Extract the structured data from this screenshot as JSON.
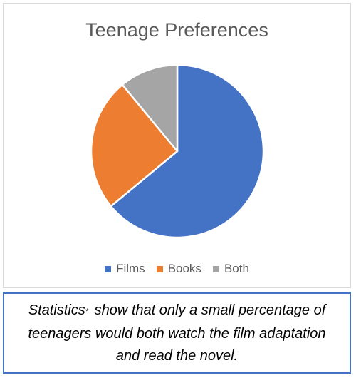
{
  "chart_data": {
    "type": "pie",
    "title": "Teenage Preferences",
    "categories": [
      "Films",
      "Books",
      "Both"
    ],
    "values": [
      64,
      25,
      11
    ],
    "colors": [
      "#4472c4",
      "#ed7d31",
      "#a5a5a5"
    ],
    "legend_position": "bottom"
  },
  "caption": {
    "text_before": "Statistics",
    "marker": "*",
    "text_after": " show that only a small percentage of teenagers would both watch the film adaptation and read the novel."
  }
}
